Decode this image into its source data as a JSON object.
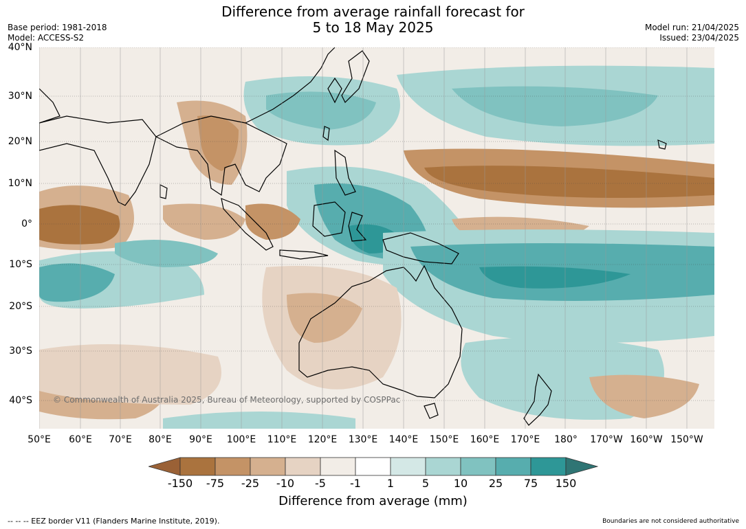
{
  "header": {
    "title_line1": "Difference from average rainfall forecast for",
    "title_line2": "5 to 18 May 2025",
    "base_period": "Base period: 1981-2018",
    "model": "Model: ACCESS-S2",
    "model_run": "Model run: 21/04/2025",
    "issued": "Issued: 23/04/2025"
  },
  "map": {
    "lat_labels": [
      "40°N",
      "30°N",
      "20°N",
      "10°N",
      "0°",
      "10°S",
      "20°S",
      "30°S",
      "40°S"
    ],
    "lon_labels": [
      "50°E",
      "60°E",
      "70°E",
      "80°E",
      "90°E",
      "100°E",
      "110°E",
      "120°E",
      "130°E",
      "140°E",
      "150°E",
      "160°E",
      "170°E",
      "180°",
      "170°W",
      "160°W",
      "150°W"
    ],
    "copyright": "© Commonwealth of Australia 2025, Bureau of Meteorology, supported by COSPPac",
    "land_color": "#000000",
    "border_color": "#808080"
  },
  "colorbar": {
    "tick_labels": [
      "-150",
      "-75",
      "-25",
      "-10",
      "-5",
      "-1",
      "1",
      "5",
      "10",
      "25",
      "75",
      "150"
    ],
    "colors": [
      "#9a6136",
      "#aa733e",
      "#c49366",
      "#d5b08f",
      "#e6d3c3",
      "#f2ede7",
      "#ffffff",
      "#d4e8e6",
      "#aad6d3",
      "#80c2c0",
      "#57adae",
      "#2e9797",
      "#2f7574"
    ],
    "label": "Difference from average (mm)"
  },
  "footer": {
    "eez_legend": "--  --  -- EEZ border V11 (Flanders Marine Institute, 2019).",
    "disclaimer": "Boundaries are not considered authoritative"
  }
}
